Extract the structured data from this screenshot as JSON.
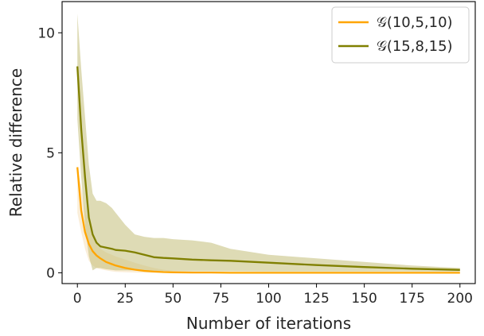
{
  "chart_data": {
    "type": "line",
    "title": "",
    "xlabel": "Number of iterations",
    "ylabel": "Relative difference",
    "xlim": [
      -8,
      208
    ],
    "ylim": [
      -0.45,
      11.3
    ],
    "xticks": [
      0,
      25,
      50,
      75,
      100,
      125,
      150,
      175,
      200
    ],
    "yticks": [
      0,
      5,
      10
    ],
    "grid": false,
    "legend": "top-right",
    "series": [
      {
        "name": "𝒢(10,5,10)",
        "color": "#ffa500",
        "band_color": "#f5deb3",
        "x": [
          0,
          2,
          4,
          6,
          8,
          10,
          12,
          15,
          18,
          20,
          25,
          30,
          35,
          40,
          45,
          50,
          60,
          70,
          80,
          100,
          125,
          150,
          175,
          200
        ],
        "values": [
          4.4,
          2.6,
          1.7,
          1.2,
          0.9,
          0.72,
          0.6,
          0.45,
          0.36,
          0.3,
          0.2,
          0.13,
          0.08,
          0.05,
          0.03,
          0.02,
          0.01,
          0.01,
          0.0,
          0.0,
          0.0,
          0.0,
          0.0,
          0.0
        ],
        "upper": [
          4.4,
          3.6,
          2.7,
          2.0,
          1.5,
          1.2,
          1.0,
          0.85,
          0.75,
          0.68,
          0.55,
          0.42,
          0.3,
          0.2,
          0.13,
          0.08,
          0.05,
          0.03,
          0.02,
          0.01,
          0.0,
          0.0,
          0.0,
          0.0
        ],
        "lower": [
          2.5,
          1.7,
          1.0,
          0.5,
          0.3,
          0.2,
          0.15,
          0.1,
          0.06,
          0.04,
          0.02,
          0.01,
          0.0,
          0.0,
          0.0,
          0.0,
          0.0,
          0.0,
          0.0,
          0.0,
          0.0,
          0.0,
          0.0,
          0.0
        ]
      },
      {
        "name": "𝒢(15,8,15)",
        "color": "#808000",
        "band_color": "#bdb76b",
        "x": [
          0,
          2,
          4,
          6,
          8,
          10,
          12,
          15,
          18,
          20,
          25,
          30,
          35,
          40,
          45,
          50,
          60,
          70,
          80,
          100,
          125,
          150,
          175,
          200
        ],
        "values": [
          8.6,
          6.0,
          4.0,
          2.3,
          1.6,
          1.25,
          1.1,
          1.05,
          1.0,
          0.95,
          0.92,
          0.85,
          0.75,
          0.65,
          0.62,
          0.6,
          0.55,
          0.52,
          0.5,
          0.42,
          0.32,
          0.24,
          0.17,
          0.12
        ],
        "upper": [
          10.8,
          8.5,
          6.5,
          4.5,
          3.3,
          3.0,
          3.0,
          2.9,
          2.7,
          2.5,
          2.0,
          1.6,
          1.5,
          1.45,
          1.45,
          1.4,
          1.35,
          1.25,
          1.0,
          0.75,
          0.6,
          0.45,
          0.3,
          0.2
        ],
        "lower": [
          6.4,
          4.0,
          2.0,
          0.7,
          0.1,
          0.2,
          0.2,
          0.15,
          0.12,
          0.1,
          0.1,
          0.1,
          0.1,
          0.08,
          0.07,
          0.07,
          0.06,
          0.06,
          0.06,
          0.05,
          0.05,
          0.05,
          0.05,
          0.05
        ]
      }
    ]
  }
}
